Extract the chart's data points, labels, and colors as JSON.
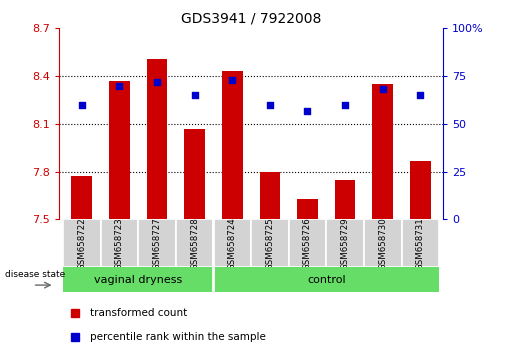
{
  "title": "GDS3941 / 7922008",
  "samples": [
    "GSM658722",
    "GSM658723",
    "GSM658727",
    "GSM658728",
    "GSM658724",
    "GSM658725",
    "GSM658726",
    "GSM658729",
    "GSM658730",
    "GSM658731"
  ],
  "red_values": [
    7.77,
    8.37,
    8.51,
    8.07,
    8.43,
    7.8,
    7.63,
    7.75,
    8.35,
    7.87
  ],
  "blue_values": [
    60,
    70,
    72,
    65,
    73,
    60,
    57,
    60,
    68,
    65
  ],
  "ylim_left": [
    7.5,
    8.7
  ],
  "ylim_right": [
    0,
    100
  ],
  "yticks_left": [
    7.5,
    7.8,
    8.1,
    8.4,
    8.7
  ],
  "yticks_right": [
    0,
    25,
    50,
    75,
    100
  ],
  "groups": [
    {
      "label": "vaginal dryness",
      "start": 0,
      "end": 4
    },
    {
      "label": "control",
      "start": 4,
      "end": 10
    }
  ],
  "group_split": 4,
  "bar_color": "#CC0000",
  "dot_color": "#0000CC",
  "bar_width": 0.55,
  "background_color": "#ffffff",
  "axis_label_color_left": "#CC0000",
  "axis_label_color_right": "#0000CC",
  "legend_red_label": "transformed count",
  "legend_blue_label": "percentile rank within the sample",
  "disease_state_label": "disease state",
  "tick_area_color": "#d3d3d3",
  "green_bar_color": "#66DD66"
}
